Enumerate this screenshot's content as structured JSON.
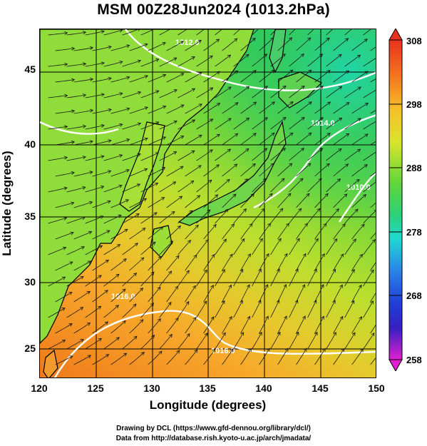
{
  "title": "MSM 00Z28Jun2024 (1013.2hPa)",
  "map": {
    "x_axis_label": "Longitude (degrees)",
    "y_axis_label": "Latitude  (degrees)",
    "x_ticks": [
      "120",
      "125",
      "130",
      "135",
      "140",
      "145",
      "150"
    ],
    "y_ticks": [
      "45",
      "40",
      "35",
      "30",
      "25"
    ],
    "lon_range": [
      120,
      150
    ],
    "lat_range": [
      22.5,
      47.6
    ],
    "contour_labels": [
      "1016.0",
      "1016.0",
      "1014.0",
      "1012.0",
      "1010.0"
    ],
    "colors": {
      "warm": "#ef7a1c",
      "mid": "#b9df2c",
      "cool": "#2ec44a",
      "coast": "#000000",
      "isobar": "#ffffff"
    }
  },
  "colorbar": {
    "ticks": [
      "308",
      "298",
      "288",
      "278",
      "268",
      "258"
    ],
    "range": [
      258,
      308
    ]
  },
  "footer": {
    "line1": "Drawing by DCL (https://www.gfd-dennou.org/library/dcl/)",
    "line2": "Data from http://database.rish.kyoto-u.ac.jp/arch/jmadata/"
  }
}
